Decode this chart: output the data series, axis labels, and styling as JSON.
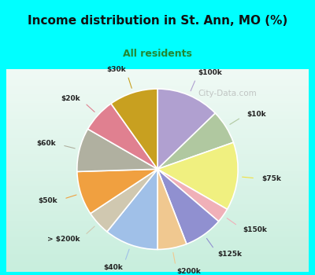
{
  "title": "Income distribution in St. Ann, MO (%)",
  "subtitle": "All residents",
  "background_color": "#00FFFF",
  "chart_bg_gradient_top": "#e8f5ee",
  "chart_bg_gradient_bottom": "#d0ede0",
  "watermark": "City-Data.com",
  "labels": [
    "$100k",
    "$10k",
    "$75k",
    "$150k",
    "$125k",
    "$200k",
    "$40k",
    "> $200k",
    "$50k",
    "$60k",
    "$20k",
    "$30k"
  ],
  "values": [
    13,
    7,
    14,
    3,
    8,
    6,
    11,
    5,
    9,
    9,
    7,
    10
  ],
  "colors": [
    "#b0a0d0",
    "#b0c8a0",
    "#f0f080",
    "#f0b0b8",
    "#9090d0",
    "#f0c890",
    "#a0c0e8",
    "#d0c8b0",
    "#f0a040",
    "#b0b0a0",
    "#e08090",
    "#c8a020"
  ],
  "line_colors": [
    "#b0a0d0",
    "#b0c8a0",
    "#f0e040",
    "#f0b0b8",
    "#9090d0",
    "#f0c890",
    "#a0c0e8",
    "#d0c8b0",
    "#f0a040",
    "#b0b0a0",
    "#e08090",
    "#c8a020"
  ]
}
